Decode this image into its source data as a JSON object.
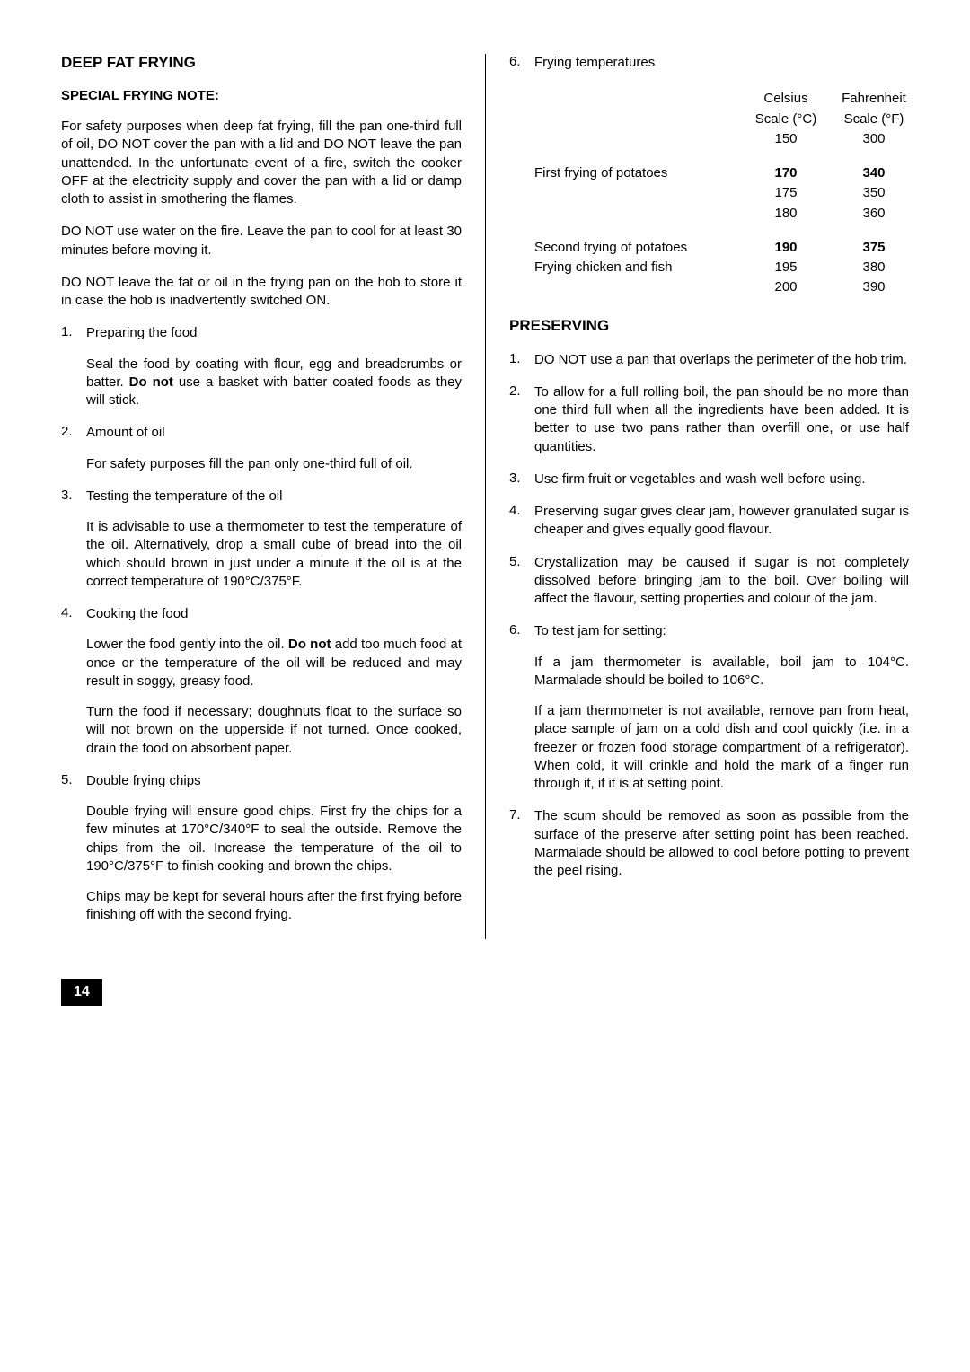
{
  "left": {
    "heading": "DEEP FAT FRYING",
    "subhead": "SPECIAL FRYING NOTE:",
    "p1": "For safety purposes when deep fat frying, fill the pan one-third full of oil, DO NOT cover the pan with a lid and DO NOT leave the pan unattended.  In the unfortunate event of a fire, switch  the cooker OFF at the electricity supply and cover the pan with a lid or damp cloth to assist in smothering the flames.",
    "p2": "DO NOT use water on the fire. Leave the pan to cool for at least 30 minutes before moving it.",
    "p3": "DO NOT leave the fat or oil in the frying pan on the hob to store it in case the hob is inadvertently switched ON.",
    "items": [
      {
        "num": "1.",
        "lead": "Preparing the food",
        "paras": [
          "Seal the food by coating with flour, egg and breadcrumbs or batter. <b>Do not</b> use a basket with batter coated foods as they will stick."
        ]
      },
      {
        "num": "2.",
        "lead": "Amount of oil",
        "paras": [
          "For safety purposes fill the pan only one-third full of oil."
        ]
      },
      {
        "num": "3.",
        "lead": "Testing the temperature of the oil",
        "paras": [
          "It is advisable to use a thermometer to test the temperature of the oil.  Alternatively, drop a small cube of bread into the oil which should brown in just under a minute if the oil is at the correct temperature of 190°C/375°F."
        ]
      },
      {
        "num": "4.",
        "lead": "Cooking the food",
        "paras": [
          "Lower the food gently into the oil.  <b>Do not</b> add too much food at once or the temperature of the oil will be reduced and may result in soggy, greasy food.",
          "Turn the food if necessary; doughnuts float to the surface so will not brown on the upperside if not turned. Once cooked, drain the food on absorbent paper."
        ]
      },
      {
        "num": "5.",
        "lead": "Double frying chips",
        "paras": [
          "Double frying will ensure good chips.  First fry the chips for a few minutes at 170°C/340°F to seal the outside. Remove the chips from the oil. Increase the temperature of the oil to 190°C/375°F to finish cooking and brown the chips.",
          "Chips may be kept for several hours after the first frying before finishing off with the second frying."
        ]
      }
    ]
  },
  "right": {
    "item6": {
      "num": "6.",
      "lead": "Frying temperatures"
    },
    "temps": {
      "header": {
        "c_top": "Celsius",
        "c_mid": "Scale (°C)",
        "c_val": "150",
        "f_top": "Fahrenheit",
        "f_mid": "Scale (°F)",
        "f_val": "300"
      },
      "rows": [
        {
          "label": "First frying of potatoes",
          "c": "170",
          "f": "340",
          "bold": true
        },
        {
          "label": "",
          "c": "175",
          "f": "350",
          "bold": false
        },
        {
          "label": "",
          "c": "180",
          "f": "360",
          "bold": false
        }
      ],
      "rows2": [
        {
          "label": "Second frying of potatoes",
          "c": "190",
          "f": "375",
          "bold": true
        },
        {
          "label": "Frying chicken and fish",
          "c": "195",
          "f": "380",
          "bold": false
        },
        {
          "label": "",
          "c": "200",
          "f": "390",
          "bold": false
        }
      ]
    },
    "heading2": "PRESERVING",
    "items": [
      {
        "num": "1.",
        "paras": [
          "DO NOT use a pan that overlaps the perimeter of the hob trim."
        ]
      },
      {
        "num": "2.",
        "paras": [
          "To allow for a full rolling boil, the pan should be no more than one third full when all the ingredients have been added.  It is better to use two pans rather than overfill one, or use half quantities."
        ]
      },
      {
        "num": "3.",
        "paras": [
          "Use firm fruit or vegetables and wash well before using."
        ]
      },
      {
        "num": "4.",
        "paras": [
          "Preserving sugar gives clear jam, however granulated sugar is cheaper and gives equally good flavour."
        ]
      },
      {
        "num": "5.",
        "paras": [
          "Crystallization may be caused if sugar is not completely dissolved before bringing jam to the boil. Over boiling will affect the flavour, setting properties and colour  of the jam."
        ]
      },
      {
        "num": "6.",
        "lead": "To test jam for setting:",
        "paras": [
          "If a jam thermometer is available, boil jam to 104°C. Marmalade should be boiled to 106°C.",
          "If a jam thermometer is not available, remove pan from heat, place sample of jam on a cold dish and cool quickly (i.e. in a freezer or frozen food storage compartment of a refrigerator). When cold, it will crinkle and hold the mark of a finger run through it, if it is at setting point."
        ]
      },
      {
        "num": "7.",
        "paras": [
          "The scum should be removed as soon as possible from the surface of the preserve after setting point has been reached. Marmalade should be allowed to cool before potting to prevent the peel rising."
        ]
      }
    ]
  },
  "pageNumber": "14"
}
